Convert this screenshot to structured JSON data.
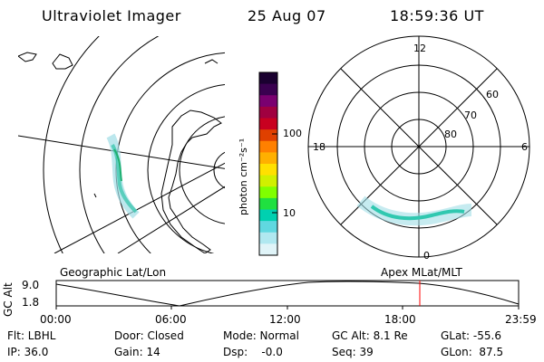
{
  "header": {
    "instrument": "Ultraviolet Imager",
    "date": "25 Aug 07",
    "time": "18:59:36 UT"
  },
  "geo_panel": {
    "label": "Geographic Lat/Lon"
  },
  "polar_panel": {
    "label": "Apex MLat/MLT",
    "top_label": "12",
    "left_label": "18",
    "right_label": "6",
    "bottom_label": "0",
    "ring_labels": [
      "60",
      "70",
      "80"
    ]
  },
  "colorbar": {
    "unit": "photon cm⁻²s⁻¹",
    "ticks": [
      "100",
      "10"
    ],
    "colors": [
      "#1a0030",
      "#3a0050",
      "#7a0070",
      "#a00040",
      "#c80020",
      "#e04000",
      "#ff8000",
      "#ffb000",
      "#ffe000",
      "#d0f000",
      "#80ff00",
      "#20e040",
      "#00d0b0",
      "#60d8e0",
      "#b0e8f0",
      "#e0f4f8"
    ]
  },
  "altitude_plot": {
    "ylabel": "GC Alt",
    "ytick_top": "9.0",
    "ytick_bottom": "1.8",
    "xticks": [
      "00:00",
      "06:00",
      "12:00",
      "18:00",
      "23:59"
    ],
    "marker_color": "#ff0000"
  },
  "info_rows": [
    [
      "Flt: LBHL",
      "Door: Closed",
      "Mode: Normal",
      "GC Alt: 8.1 Re",
      "GLat: -55.6"
    ],
    [
      "IP: 36.0",
      "Gain: 14",
      "Dsp:    -0.0",
      "Seq: 39",
      "GLon:  87.5"
    ]
  ]
}
